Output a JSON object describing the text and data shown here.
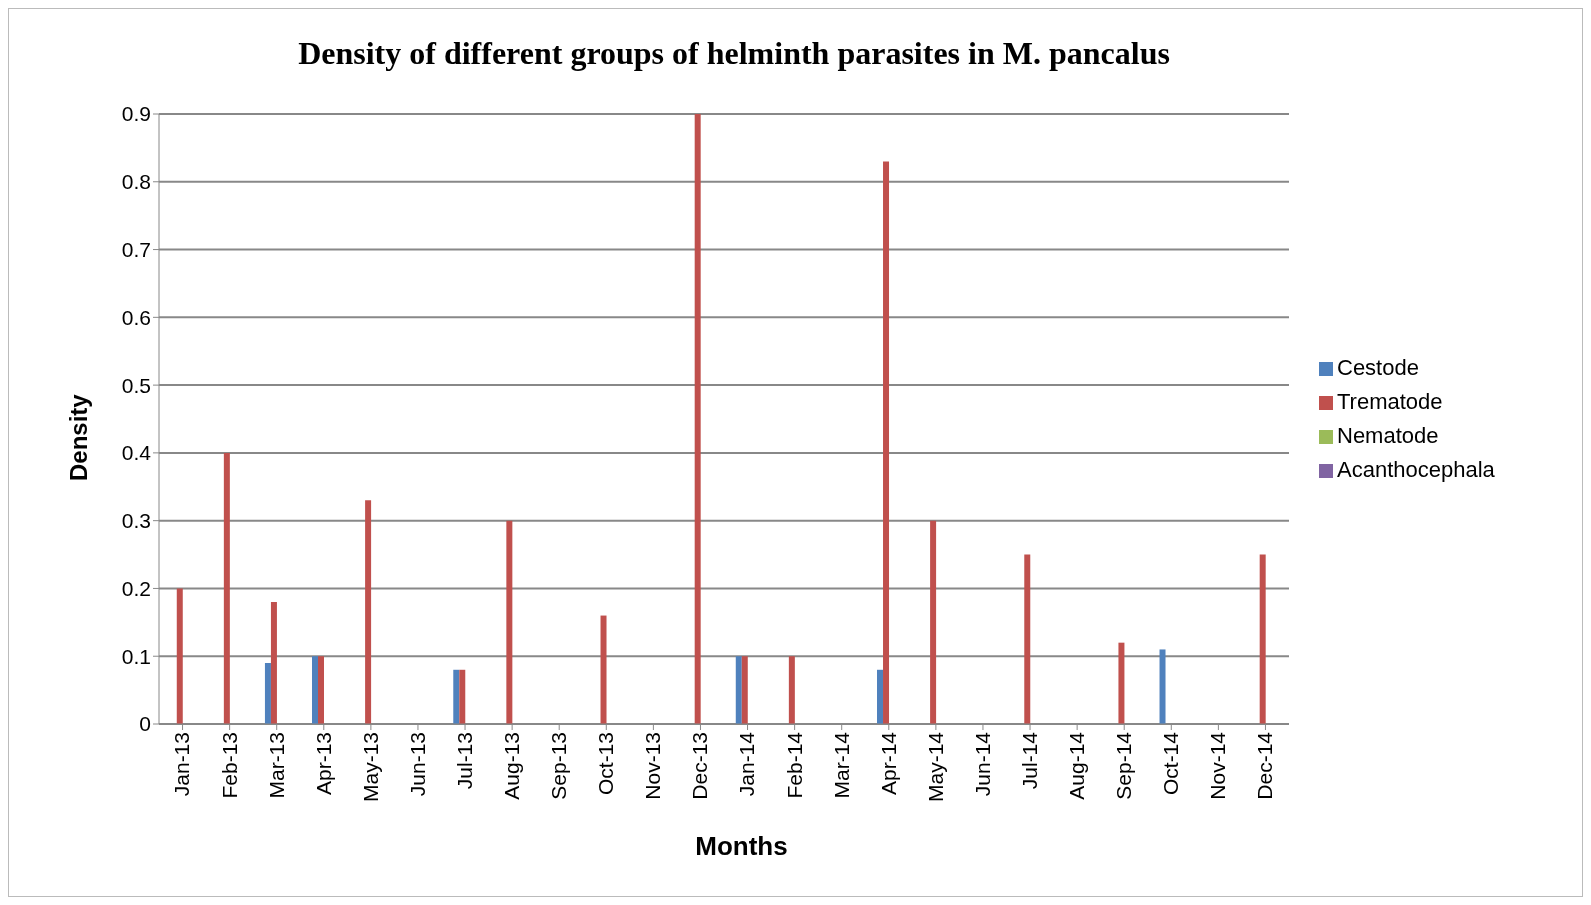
{
  "chart_data": {
    "type": "bar",
    "title": "Density of different groups of helminth parasites in M. pancalus",
    "xlabel": "Months",
    "ylabel": "Density",
    "categories": [
      "Jan-13",
      "Feb-13",
      "Mar-13",
      "Apr-13",
      "May-13",
      "Jun-13",
      "Jul-13",
      "Aug-13",
      "Sep-13",
      "Oct-13",
      "Nov-13",
      "Dec-13",
      "Jan-14",
      "Feb-14",
      "Mar-14",
      "Apr-14",
      "May-14",
      "Jun-14",
      "Jul-14",
      "Aug-14",
      "Sep-14",
      "Oct-14",
      "Nov-14",
      "Dec-14"
    ],
    "series": [
      {
        "name": "Cestode",
        "color": "#4f81bd",
        "values": [
          0,
          0,
          0.09,
          0.1,
          0,
          0,
          0.08,
          0,
          0,
          0,
          0,
          0,
          0.1,
          0,
          0,
          0.08,
          0,
          0,
          0,
          0,
          0,
          0.11,
          0,
          0
        ]
      },
      {
        "name": "Trematode",
        "color": "#c0504d",
        "values": [
          0.2,
          0.4,
          0.18,
          0.1,
          0.33,
          0,
          0.08,
          0.3,
          0,
          0.16,
          0,
          0.9,
          0.1,
          0.1,
          0,
          0.83,
          0.3,
          0,
          0.25,
          0,
          0.12,
          0,
          0,
          0.25
        ]
      },
      {
        "name": "Nematode",
        "color": "#9bbb59",
        "values": [
          0,
          0,
          0,
          0,
          0,
          0,
          0,
          0,
          0,
          0,
          0,
          0,
          0,
          0,
          0,
          0,
          0,
          0,
          0,
          0,
          0,
          0,
          0,
          0
        ]
      },
      {
        "name": "Acanthocephala",
        "color": "#8064a2",
        "values": [
          0,
          0,
          0,
          0,
          0,
          0,
          0,
          0,
          0,
          0,
          0,
          0,
          0,
          0,
          0,
          0,
          0,
          0,
          0,
          0,
          0,
          0,
          0,
          0
        ]
      }
    ],
    "ylim": [
      0,
      0.9
    ],
    "yticks": [
      0,
      0.1,
      0.2,
      0.3,
      0.4,
      0.5,
      0.6,
      0.7,
      0.8,
      0.9
    ],
    "grid": "y",
    "legend": "right"
  }
}
